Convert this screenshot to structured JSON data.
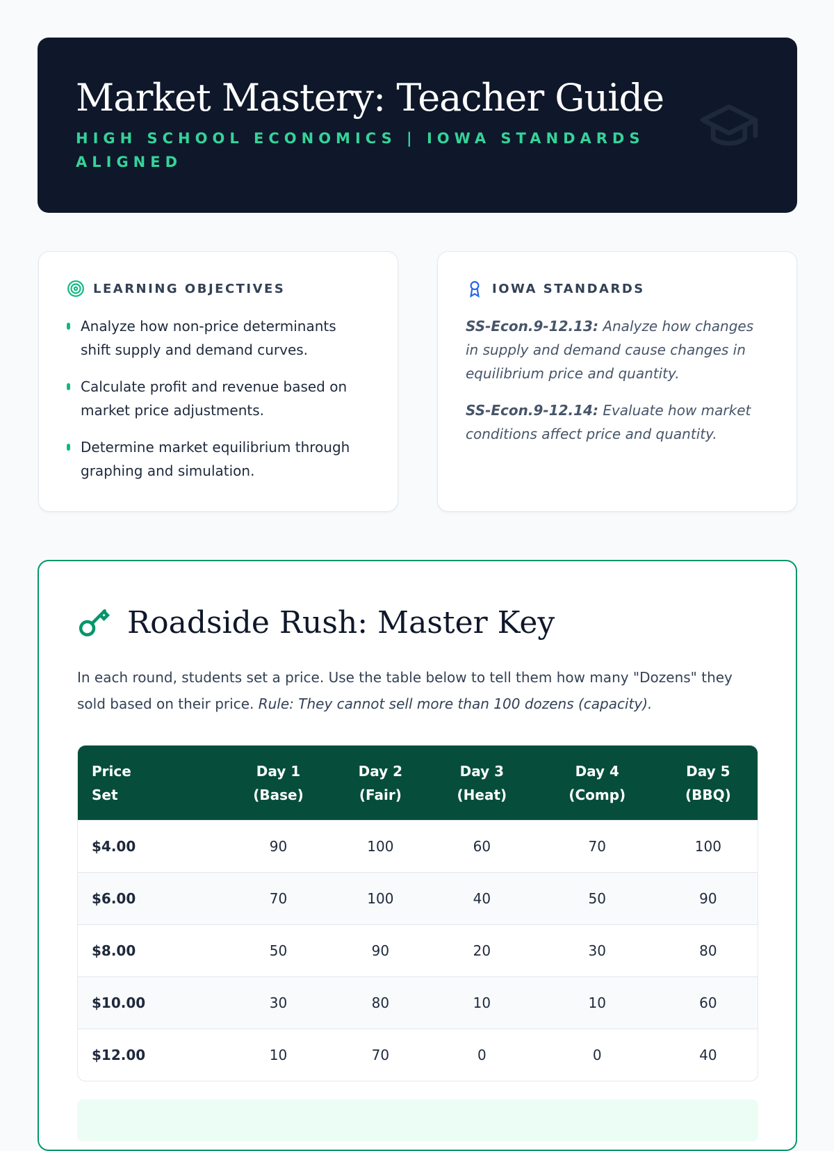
{
  "header": {
    "title": "Market Mastery: Teacher Guide",
    "subtitle": "HIGH SCHOOL ECONOMICS | IOWA STANDARDS ALIGNED",
    "icon": "graduation-cap-icon"
  },
  "objectives": {
    "title": "LEARNING OBJECTIVES",
    "icon": "target-icon",
    "items": [
      "Analyze how non-price determinants shift supply and demand curves.",
      "Calculate profit and revenue based on market price adjustments.",
      "Determine market equilibrium through graphing and simulation."
    ]
  },
  "standards": {
    "title": "IOWA STANDARDS",
    "icon": "award-icon",
    "items": [
      {
        "code": "SS-Econ.9-12.13:",
        "text": " Analyze how changes in supply and demand cause changes in equilibrium price and quantity."
      },
      {
        "code": "SS-Econ.9-12.14:",
        "text": " Evaluate how market conditions affect price and quantity."
      }
    ]
  },
  "key": {
    "title": "Roadside Rush: Master Key",
    "icon": "key-icon",
    "intro": "In each round, students set a price. Use the table below to tell them how many \"Dozens\" they sold based on their price. ",
    "rule": "Rule: They cannot sell more than 100 dozens (capacity).",
    "table": {
      "headers": [
        [
          "Price",
          "Set"
        ],
        [
          "Day 1",
          "(Base)"
        ],
        [
          "Day 2",
          "(Fair)"
        ],
        [
          "Day 3",
          "(Heat)"
        ],
        [
          "Day 4",
          "(Comp)"
        ],
        [
          "Day 5",
          "(BBQ)"
        ]
      ],
      "rows": [
        [
          "$4.00",
          "90",
          "100",
          "60",
          "70",
          "100"
        ],
        [
          "$6.00",
          "70",
          "100",
          "40",
          "50",
          "90"
        ],
        [
          "$8.00",
          "50",
          "90",
          "20",
          "30",
          "80"
        ],
        [
          "$10.00",
          "30",
          "80",
          "10",
          "10",
          "60"
        ],
        [
          "$12.00",
          "10",
          "70",
          "0",
          "0",
          "40"
        ]
      ]
    }
  },
  "colors": {
    "accent": "#059669",
    "header_bg": "#0f172a",
    "table_header": "#064e3b"
  }
}
